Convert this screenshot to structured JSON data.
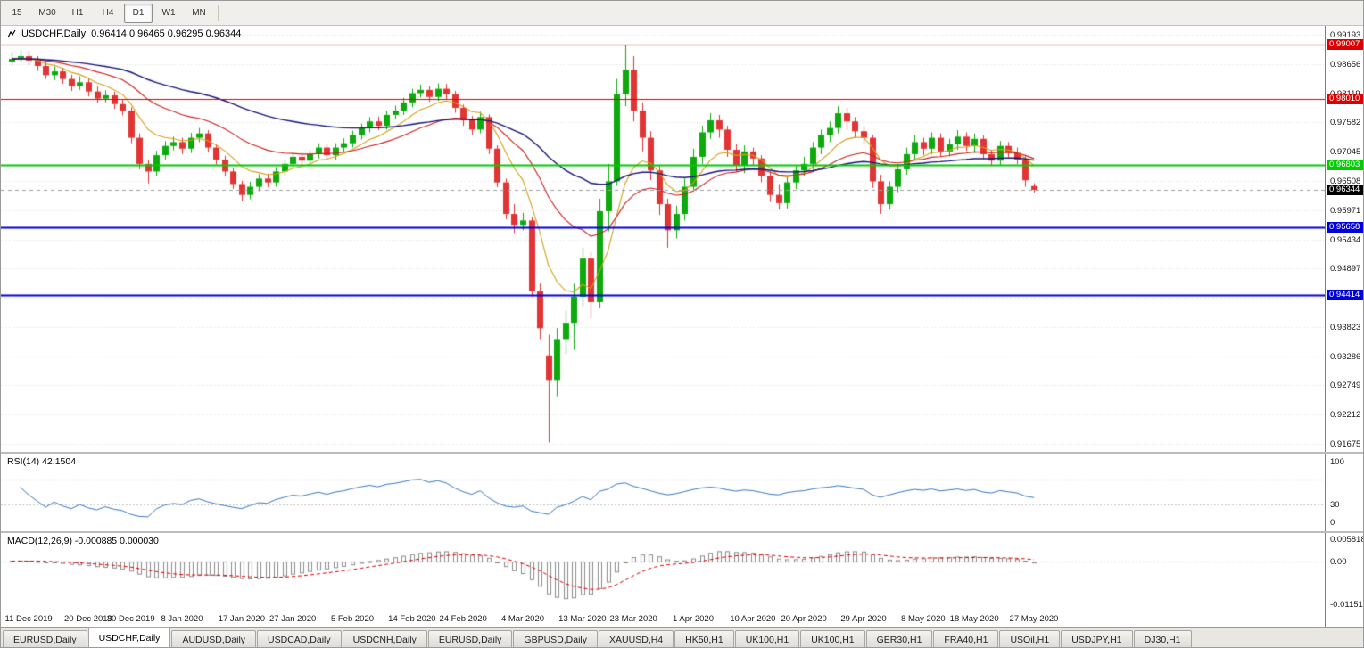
{
  "toolbar": {
    "periods": [
      {
        "label": "15",
        "active": false
      },
      {
        "label": "M30",
        "active": false
      },
      {
        "label": "H1",
        "active": false
      },
      {
        "label": "H4",
        "active": false
      },
      {
        "label": "D1",
        "active": true
      },
      {
        "label": "W1",
        "active": false
      },
      {
        "label": "MN",
        "active": false
      }
    ]
  },
  "chart_header": {
    "symbol_period": "USDCHF,Daily",
    "ohlc": "0.96414 0.96465 0.96295 0.96344"
  },
  "price_axis": {
    "labels": [
      "0.99193",
      "0.98656",
      "0.98119",
      "0.97582",
      "0.97045",
      "0.96508",
      "0.95971",
      "0.95434",
      "0.94897",
      "0.94360",
      "0.93823",
      "0.93286",
      "0.92749",
      "0.92212",
      "0.91675"
    ]
  },
  "current_price": {
    "label": "0.96344",
    "value": 0.96344,
    "box_color": "#000000",
    "text_color": "#ffffff"
  },
  "hlines": [
    {
      "label": "0.99007",
      "value": 0.99007,
      "color": "#dd0000",
      "width": 1
    },
    {
      "label": "0.98010",
      "value": 0.9801,
      "color": "#dd0000",
      "width": 1
    },
    {
      "label": "0.96803",
      "value": 0.96803,
      "color": "#00cc00",
      "width": 2
    },
    {
      "label": "0.95658",
      "value": 0.95658,
      "color": "#0000dd",
      "width": 2
    },
    {
      "label": "0.94414",
      "value": 0.94414,
      "color": "#0000dd",
      "width": 2
    }
  ],
  "rsi_panel": {
    "label": "RSI(14) 42.1504",
    "axis_labels": [
      {
        "text": "100",
        "value": 100
      },
      {
        "text": "30",
        "value": 30
      },
      {
        "text": "0",
        "value": 0
      }
    ]
  },
  "macd_panel": {
    "label": "MACD(12,26,9) -0.000885 0.000030",
    "axis_labels": [
      {
        "text": "0.005818",
        "value": 0.005818
      },
      {
        "text": "0.00",
        "value": 0
      },
      {
        "text": "-0.01151",
        "value": -0.01151
      }
    ]
  },
  "bottom_tabs": {
    "items": [
      {
        "label": "EURUSD,Daily",
        "active": false
      },
      {
        "label": "USDCHF,Daily",
        "active": true
      },
      {
        "label": "AUDUSD,Daily",
        "active": false
      },
      {
        "label": "USDCAD,Daily",
        "active": false
      },
      {
        "label": "USDCNH,Daily",
        "active": false
      },
      {
        "label": "EURUSD,Daily",
        "active": false
      },
      {
        "label": "GBPUSD,Daily",
        "active": false
      },
      {
        "label": "XAUUSD,H4",
        "active": false
      },
      {
        "label": "HK50,H1",
        "active": false
      },
      {
        "label": "UK100,H1",
        "active": false
      },
      {
        "label": "UK100,H1",
        "active": false
      },
      {
        "label": "GER30,H1",
        "active": false
      },
      {
        "label": "FRA40,H1",
        "active": false
      },
      {
        "label": "USOil,H1",
        "active": false
      },
      {
        "label": "USDJPY,H1",
        "active": false
      },
      {
        "label": "DJ30,H1",
        "active": false
      }
    ]
  },
  "chart_data": {
    "type": "candlestick",
    "title": "USDCHF,Daily",
    "ylim": [
      0.91675,
      0.99193
    ],
    "x_tick_labels": [
      "11 Dec 2019",
      "20 Dec 2019",
      "30 Dec 2019",
      "8 Jan 2020",
      "17 Jan 2020",
      "27 Jan 2020",
      "5 Feb 2020",
      "14 Feb 2020",
      "24 Feb 2020",
      "4 Mar 2020",
      "13 Mar 2020",
      "23 Mar 2020",
      "1 Apr 2020",
      "10 Apr 2020",
      "20 Apr 2020",
      "29 Apr 2020",
      "8 May 2020",
      "18 May 2020",
      "27 May 2020"
    ],
    "x_tick_indices": [
      2,
      9,
      14,
      20,
      27,
      33,
      40,
      47,
      53,
      60,
      67,
      73,
      80,
      87,
      93,
      100,
      107,
      113,
      120
    ],
    "colors": {
      "bull": "#0caa0c",
      "bear": "#e23434",
      "background": "#ffffff",
      "grid": "#e2e2e2"
    },
    "overlays": [
      {
        "name": "ma-fast",
        "period": 8,
        "color": "#d4a017"
      },
      {
        "name": "ma-mid",
        "period": 21,
        "color": "#cc2020"
      },
      {
        "name": "ma-slow",
        "period": 50,
        "color": "#16167a"
      }
    ],
    "rsi": {
      "period": 14,
      "color": "#3a78be",
      "levels": [
        30,
        70
      ]
    },
    "macd": {
      "fast": 12,
      "slow": 26,
      "signal": 9,
      "histogram_color": "#8c8c8c",
      "signal_color": "#dd0000",
      "scale_max": 0.005818,
      "scale_min": -0.01151
    },
    "candles": [
      [
        0.987,
        0.9888,
        0.9862,
        0.9875
      ],
      [
        0.9875,
        0.9892,
        0.9868,
        0.988
      ],
      [
        0.988,
        0.989,
        0.9863,
        0.9872
      ],
      [
        0.9872,
        0.988,
        0.9853,
        0.9862
      ],
      [
        0.9862,
        0.987,
        0.9838,
        0.9845
      ],
      [
        0.9845,
        0.9861,
        0.9836,
        0.9852
      ],
      [
        0.9852,
        0.9859,
        0.9829,
        0.9838
      ],
      [
        0.9838,
        0.9846,
        0.9816,
        0.9825
      ],
      [
        0.9825,
        0.9843,
        0.9818,
        0.9832
      ],
      [
        0.9832,
        0.9839,
        0.9806,
        0.9815
      ],
      [
        0.9815,
        0.9824,
        0.9794,
        0.9802
      ],
      [
        0.9802,
        0.9817,
        0.9795,
        0.9808
      ],
      [
        0.9808,
        0.9815,
        0.9783,
        0.9792
      ],
      [
        0.9792,
        0.98,
        0.9771,
        0.978
      ],
      [
        0.978,
        0.9786,
        0.972,
        0.973
      ],
      [
        0.973,
        0.9738,
        0.9672,
        0.9682
      ],
      [
        0.9682,
        0.969,
        0.9646,
        0.9668
      ],
      [
        0.9668,
        0.9706,
        0.966,
        0.9698
      ],
      [
        0.9698,
        0.9724,
        0.969,
        0.9715
      ],
      [
        0.9715,
        0.9732,
        0.9707,
        0.9722
      ],
      [
        0.9722,
        0.973,
        0.97,
        0.971
      ],
      [
        0.971,
        0.9739,
        0.9702,
        0.973
      ],
      [
        0.973,
        0.9748,
        0.9722,
        0.9738
      ],
      [
        0.9738,
        0.9744,
        0.9703,
        0.9712
      ],
      [
        0.9712,
        0.9718,
        0.9681,
        0.969
      ],
      [
        0.969,
        0.9697,
        0.9659,
        0.9668
      ],
      [
        0.9668,
        0.9674,
        0.9636,
        0.9645
      ],
      [
        0.9645,
        0.9651,
        0.9613,
        0.9625
      ],
      [
        0.9625,
        0.9649,
        0.9617,
        0.964
      ],
      [
        0.964,
        0.9663,
        0.9632,
        0.9655
      ],
      [
        0.9655,
        0.9664,
        0.9639,
        0.9648
      ],
      [
        0.9648,
        0.9676,
        0.964,
        0.9668
      ],
      [
        0.9668,
        0.969,
        0.966,
        0.9682
      ],
      [
        0.9682,
        0.9703,
        0.9674,
        0.9695
      ],
      [
        0.9695,
        0.9702,
        0.9679,
        0.9688
      ],
      [
        0.9688,
        0.9708,
        0.968,
        0.97
      ],
      [
        0.97,
        0.972,
        0.9692,
        0.9712
      ],
      [
        0.9712,
        0.9719,
        0.9689,
        0.9698
      ],
      [
        0.9698,
        0.972,
        0.969,
        0.9712
      ],
      [
        0.9712,
        0.9729,
        0.9704,
        0.972
      ],
      [
        0.972,
        0.9743,
        0.9712,
        0.9735
      ],
      [
        0.9735,
        0.9756,
        0.9727,
        0.9748
      ],
      [
        0.9748,
        0.9768,
        0.974,
        0.976
      ],
      [
        0.976,
        0.9769,
        0.9744,
        0.9752
      ],
      [
        0.9752,
        0.978,
        0.9745,
        0.9772
      ],
      [
        0.9772,
        0.9789,
        0.9764,
        0.978
      ],
      [
        0.978,
        0.9803,
        0.9772,
        0.9795
      ],
      [
        0.9795,
        0.982,
        0.9786,
        0.9812
      ],
      [
        0.9812,
        0.9828,
        0.9804,
        0.9818
      ],
      [
        0.9818,
        0.9825,
        0.9796,
        0.9805
      ],
      [
        0.9805,
        0.983,
        0.9798,
        0.982
      ],
      [
        0.982,
        0.9829,
        0.98,
        0.981
      ],
      [
        0.981,
        0.9816,
        0.9776,
        0.9785
      ],
      [
        0.9785,
        0.9791,
        0.9752,
        0.9762
      ],
      [
        0.9762,
        0.977,
        0.9736,
        0.9745
      ],
      [
        0.9745,
        0.9778,
        0.9738,
        0.9768
      ],
      [
        0.9768,
        0.9773,
        0.97,
        0.971
      ],
      [
        0.971,
        0.9716,
        0.9639,
        0.9648
      ],
      [
        0.9648,
        0.9655,
        0.958,
        0.959
      ],
      [
        0.959,
        0.9608,
        0.9555,
        0.957
      ],
      [
        0.957,
        0.9592,
        0.956,
        0.9578
      ],
      [
        0.9578,
        0.9585,
        0.9438,
        0.9448
      ],
      [
        0.9448,
        0.9462,
        0.936,
        0.938
      ],
      [
        0.933,
        0.9368,
        0.917,
        0.9285
      ],
      [
        0.9285,
        0.938,
        0.9255,
        0.936
      ],
      [
        0.936,
        0.9412,
        0.9332,
        0.939
      ],
      [
        0.939,
        0.9462,
        0.934,
        0.9438
      ],
      [
        0.9438,
        0.9528,
        0.942,
        0.9508
      ],
      [
        0.9508,
        0.952,
        0.9398,
        0.9428
      ],
      [
        0.9428,
        0.9618,
        0.9418,
        0.9595
      ],
      [
        0.9595,
        0.9682,
        0.9558,
        0.965
      ],
      [
        0.965,
        0.9838,
        0.9642,
        0.981
      ],
      [
        0.981,
        0.9901,
        0.9788,
        0.9855
      ],
      [
        0.9855,
        0.988,
        0.976,
        0.978
      ],
      [
        0.978,
        0.9795,
        0.9705,
        0.973
      ],
      [
        0.973,
        0.9742,
        0.9652,
        0.967
      ],
      [
        0.967,
        0.9678,
        0.9588,
        0.9608
      ],
      [
        0.9608,
        0.9618,
        0.9528,
        0.956
      ],
      [
        0.956,
        0.9605,
        0.9545,
        0.959
      ],
      [
        0.959,
        0.9655,
        0.9578,
        0.964
      ],
      [
        0.964,
        0.971,
        0.9632,
        0.9695
      ],
      [
        0.9695,
        0.9752,
        0.9682,
        0.974
      ],
      [
        0.974,
        0.9775,
        0.9728,
        0.9762
      ],
      [
        0.9762,
        0.9772,
        0.973,
        0.9745
      ],
      [
        0.9745,
        0.9752,
        0.9695,
        0.9708
      ],
      [
        0.9708,
        0.9718,
        0.9668,
        0.968
      ],
      [
        0.968,
        0.9716,
        0.9665,
        0.9705
      ],
      [
        0.9705,
        0.9712,
        0.968,
        0.9692
      ],
      [
        0.9692,
        0.9698,
        0.9648,
        0.966
      ],
      [
        0.966,
        0.9668,
        0.9612,
        0.9625
      ],
      [
        0.9625,
        0.9645,
        0.9598,
        0.961
      ],
      [
        0.961,
        0.9658,
        0.96,
        0.9648
      ],
      [
        0.9648,
        0.968,
        0.9636,
        0.967
      ],
      [
        0.967,
        0.9695,
        0.966,
        0.9682
      ],
      [
        0.9682,
        0.9722,
        0.9672,
        0.9712
      ],
      [
        0.9712,
        0.9745,
        0.97,
        0.9735
      ],
      [
        0.9735,
        0.976,
        0.9722,
        0.9748
      ],
      [
        0.9748,
        0.9788,
        0.9738,
        0.9775
      ],
      [
        0.9775,
        0.9785,
        0.9745,
        0.976
      ],
      [
        0.976,
        0.9768,
        0.973,
        0.9742
      ],
      [
        0.9742,
        0.9752,
        0.9718,
        0.973
      ],
      [
        0.973,
        0.9736,
        0.9638,
        0.965
      ],
      [
        0.965,
        0.9662,
        0.959,
        0.9608
      ],
      [
        0.9608,
        0.965,
        0.9598,
        0.964
      ],
      [
        0.964,
        0.9682,
        0.963,
        0.9672
      ],
      [
        0.9672,
        0.9712,
        0.9662,
        0.97
      ],
      [
        0.97,
        0.9735,
        0.969,
        0.9722
      ],
      [
        0.9722,
        0.973,
        0.9698,
        0.971
      ],
      [
        0.971,
        0.974,
        0.97,
        0.973
      ],
      [
        0.973,
        0.9738,
        0.9695,
        0.9705
      ],
      [
        0.9705,
        0.9728,
        0.9696,
        0.9718
      ],
      [
        0.9718,
        0.9744,
        0.9708,
        0.9732
      ],
      [
        0.9732,
        0.974,
        0.9706,
        0.9715
      ],
      [
        0.9715,
        0.9738,
        0.9702,
        0.9728
      ],
      [
        0.9728,
        0.9734,
        0.9692,
        0.97
      ],
      [
        0.97,
        0.9708,
        0.9678,
        0.9688
      ],
      [
        0.9688,
        0.9724,
        0.968,
        0.9715
      ],
      [
        0.9715,
        0.9722,
        0.9694,
        0.9702
      ],
      [
        0.9702,
        0.9712,
        0.9682,
        0.969
      ],
      [
        0.969,
        0.9696,
        0.964,
        0.9652
      ],
      [
        0.96414,
        0.96465,
        0.96295,
        0.96344
      ]
    ]
  }
}
